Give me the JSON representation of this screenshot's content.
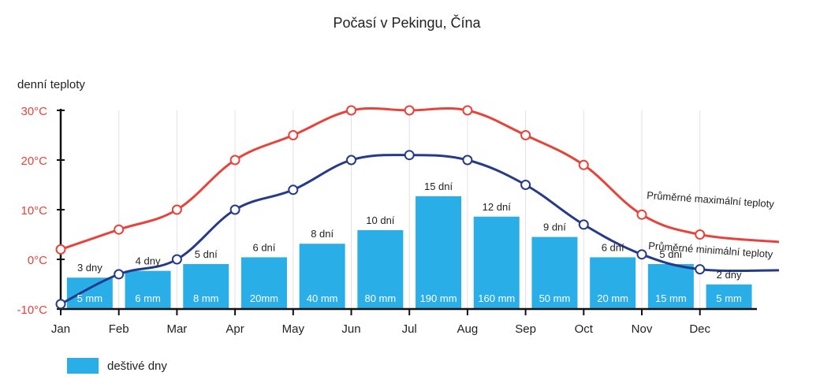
{
  "chart_data": {
    "type": "line",
    "title": "Počasí v Pekingu, Čína",
    "ylabel": "denní teploty",
    "ylim": [
      -10,
      30
    ],
    "yticks": [
      {
        "value": 30,
        "label": "30°C"
      },
      {
        "value": 20,
        "label": "20°C"
      },
      {
        "value": 10,
        "label": "10°C"
      },
      {
        "value": 0,
        "label": "0°C"
      },
      {
        "value": -10,
        "label": "-10°C"
      }
    ],
    "categories": [
      "Jan",
      "Feb",
      "Mar",
      "Apr",
      "May",
      "Jun",
      "Jul",
      "Aug",
      "Sep",
      "Oct",
      "Nov",
      "Dec"
    ],
    "series": [
      {
        "name": "Průměrné maximální teploty",
        "color": "#e8433a",
        "values": [
          2,
          6,
          10,
          20,
          25,
          30,
          30,
          30,
          25,
          19,
          9,
          5
        ],
        "tail_value": 3.5
      },
      {
        "name": "Průměrné minimální teploty",
        "color": "#263a8a",
        "values": [
          -9,
          -3,
          0,
          10,
          14,
          20,
          21,
          20,
          15,
          7,
          1,
          -2
        ],
        "tail_value": -2.2
      }
    ],
    "bars": {
      "name": "deštivé dny",
      "color": "#2aaee8",
      "rainy_days": [
        3,
        4,
        5,
        6,
        8,
        10,
        15,
        12,
        9,
        6,
        5,
        2
      ],
      "rainy_days_labels": [
        "3 dny",
        "4 dny",
        "5 dní",
        "6 dní",
        "8 dní",
        "10 dní",
        "15 dní",
        "12 dní",
        "9 dní",
        "6 dní",
        "5 dní",
        "2 dny"
      ],
      "precipitation_labels": [
        "5 mm",
        "6 mm",
        "8 mm",
        "20mm",
        "40 mm",
        "80 mm",
        "190 mm",
        "160 mm",
        "50 mm",
        "20 mm",
        "15 mm",
        "5 mm"
      ]
    },
    "grid": "vertical",
    "legend": "bottom-left"
  }
}
